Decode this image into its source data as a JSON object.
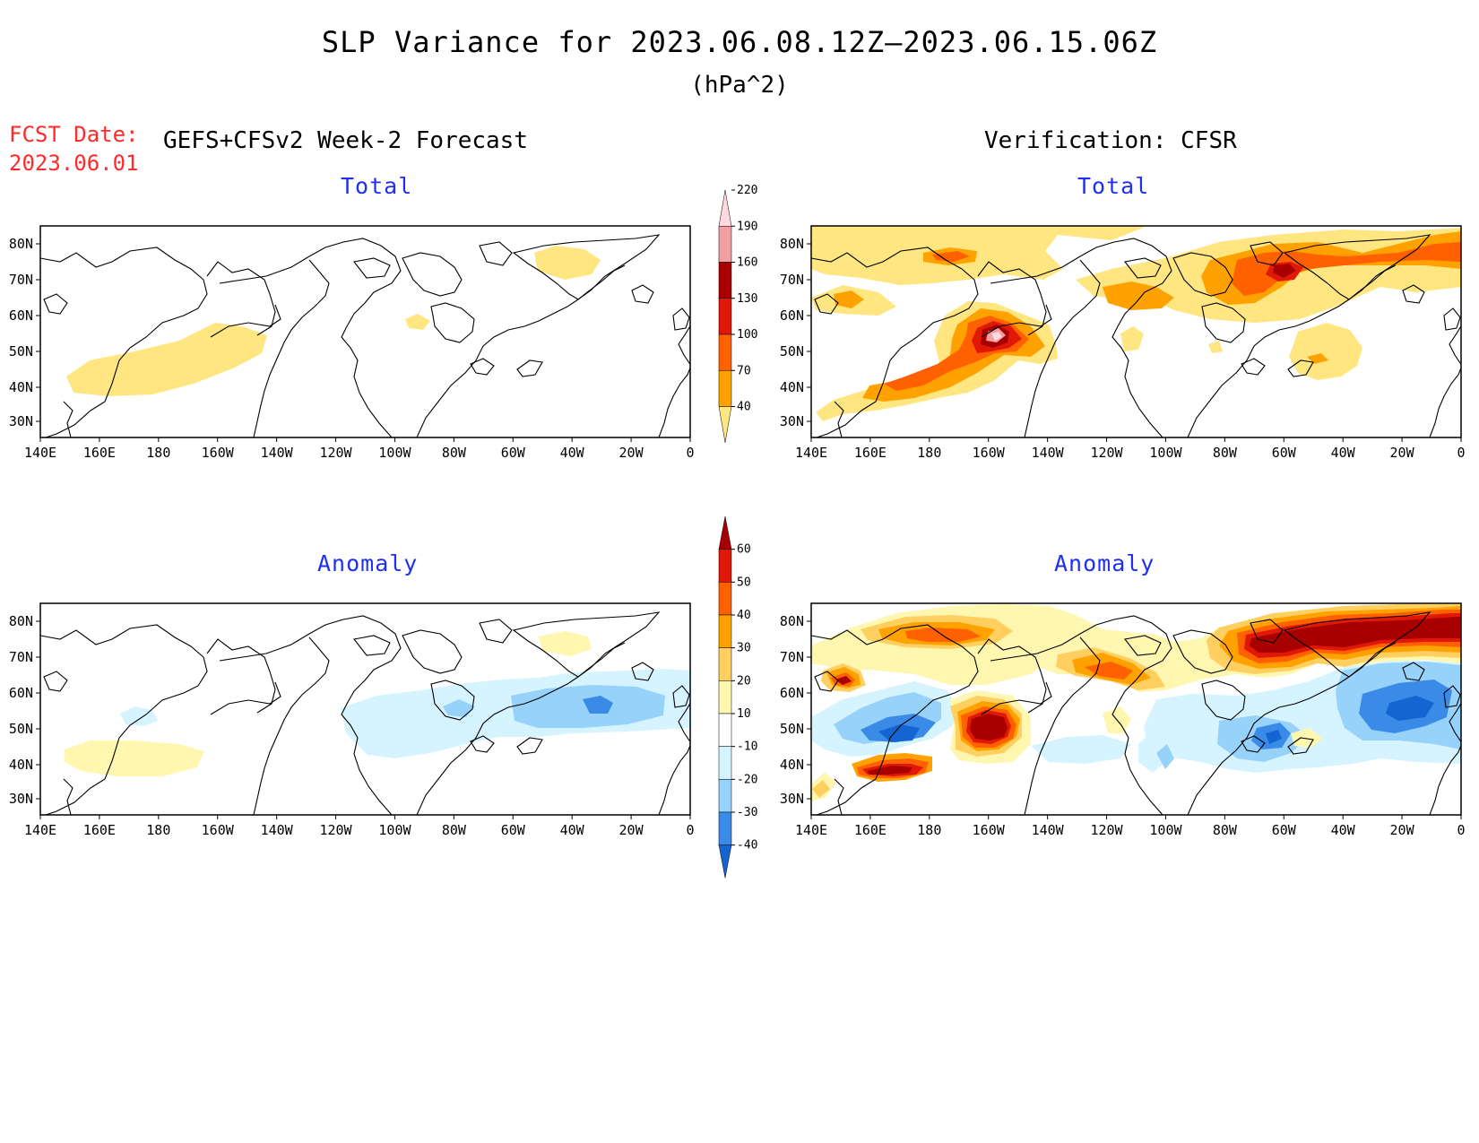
{
  "title": "SLP Variance for 2023.06.08.12Z—2023.06.15.06Z",
  "units": "(hPa^2)",
  "fcst_label": "FCST Date:",
  "fcst_date": "2023.06.01",
  "left_header": "GEFS+CFSv2 Week-2 Forecast",
  "right_header": "Verification: CFSR",
  "panels": [
    {
      "title": "Total"
    },
    {
      "title": "Total"
    },
    {
      "title": "Anomaly"
    },
    {
      "title": "Anomaly"
    }
  ],
  "axes": {
    "lat_labels": [
      "80N",
      "70N",
      "60N",
      "50N",
      "40N",
      "30N"
    ],
    "lon_labels": [
      "140E",
      "160E",
      "180",
      "160W",
      "140W",
      "120W",
      "100W",
      "80W",
      "60W",
      "40W",
      "20W",
      "0"
    ]
  },
  "colorbar_total": {
    "levels": [
      "40",
      "70",
      "100",
      "130",
      "160",
      "190",
      "220"
    ],
    "colors": [
      "#ffe680",
      "#ffa200",
      "#ff6000",
      "#e01808",
      "#a80000",
      "#f0a0a0",
      "#ffd8e0"
    ]
  },
  "colorbar_anomaly": {
    "levels": [
      "-40",
      "-30",
      "-20",
      "-10",
      "10",
      "20",
      "30",
      "40",
      "50",
      "60"
    ],
    "colors": [
      "#1464d2",
      "#3a8ae8",
      "#96d2fa",
      "#d6f4ff",
      "#ffffff",
      "#fff6b0",
      "#ffd060",
      "#ffa200",
      "#ff6000",
      "#e01808",
      "#a80000"
    ]
  }
}
